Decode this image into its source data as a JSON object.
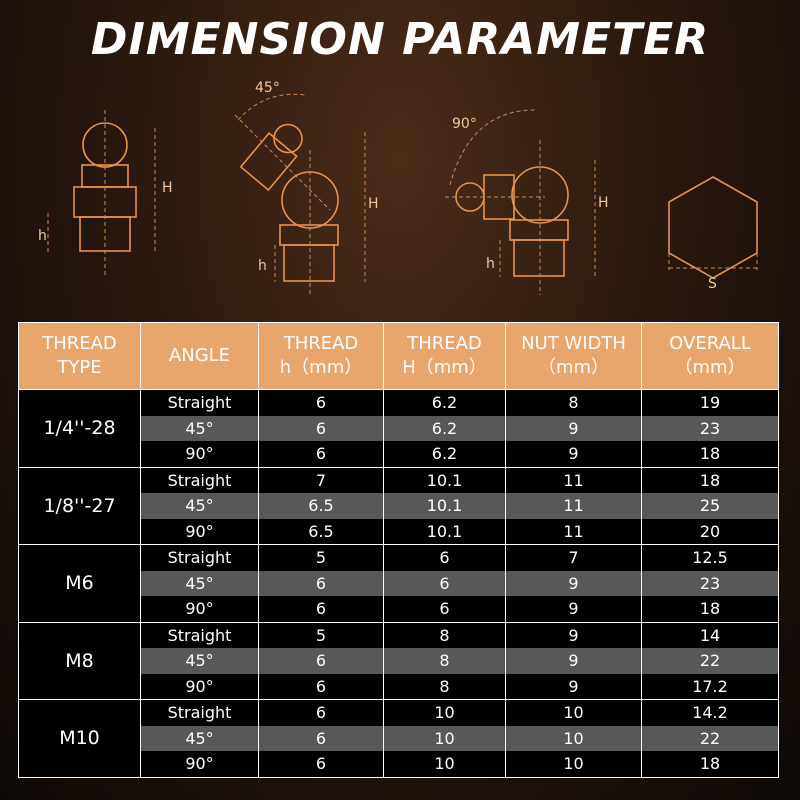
{
  "header": {
    "title": "DIMENSION PARAMETER"
  },
  "diagram_labels": {
    "angle_45": "45°",
    "angle_90": "90°",
    "height": "H",
    "thread_height": "h",
    "nut_width": "S"
  },
  "table": {
    "columns": [
      [
        "THREAD",
        "TYPE"
      ],
      [
        "ANGLE"
      ],
      [
        "THREAD",
        "h（mm）"
      ],
      [
        "THREAD",
        "H（mm）"
      ],
      [
        "NUT WIDTH",
        "（mm）"
      ],
      [
        "OVERALL",
        "（mm）"
      ]
    ],
    "groups": [
      {
        "thread_type": "1/4''-28",
        "rows": [
          [
            "Straight",
            "6",
            "6.2",
            "8",
            "19"
          ],
          [
            "45°",
            "6",
            "6.2",
            "9",
            "23"
          ],
          [
            "90°",
            "6",
            "6.2",
            "9",
            "18"
          ]
        ]
      },
      {
        "thread_type": "1/8''-27",
        "rows": [
          [
            "Straight",
            "7",
            "10.1",
            "11",
            "18"
          ],
          [
            "45°",
            "6.5",
            "10.1",
            "11",
            "25"
          ],
          [
            "90°",
            "6.5",
            "10.1",
            "11",
            "20"
          ]
        ]
      },
      {
        "thread_type": "M6",
        "rows": [
          [
            "Straight",
            "5",
            "6",
            "7",
            "12.5"
          ],
          [
            "45°",
            "6",
            "6",
            "9",
            "23"
          ],
          [
            "90°",
            "6",
            "6",
            "9",
            "18"
          ]
        ]
      },
      {
        "thread_type": "M8",
        "rows": [
          [
            "Straight",
            "5",
            "8",
            "9",
            "14"
          ],
          [
            "45°",
            "6",
            "8",
            "9",
            "22"
          ],
          [
            "90°",
            "6",
            "8",
            "9",
            "17.2"
          ]
        ]
      },
      {
        "thread_type": "M10",
        "rows": [
          [
            "Straight",
            "6",
            "10",
            "10",
            "14.2"
          ],
          [
            "45°",
            "6",
            "10",
            "10",
            "22"
          ],
          [
            "90°",
            "6",
            "10",
            "10",
            "18"
          ]
        ]
      }
    ]
  }
}
